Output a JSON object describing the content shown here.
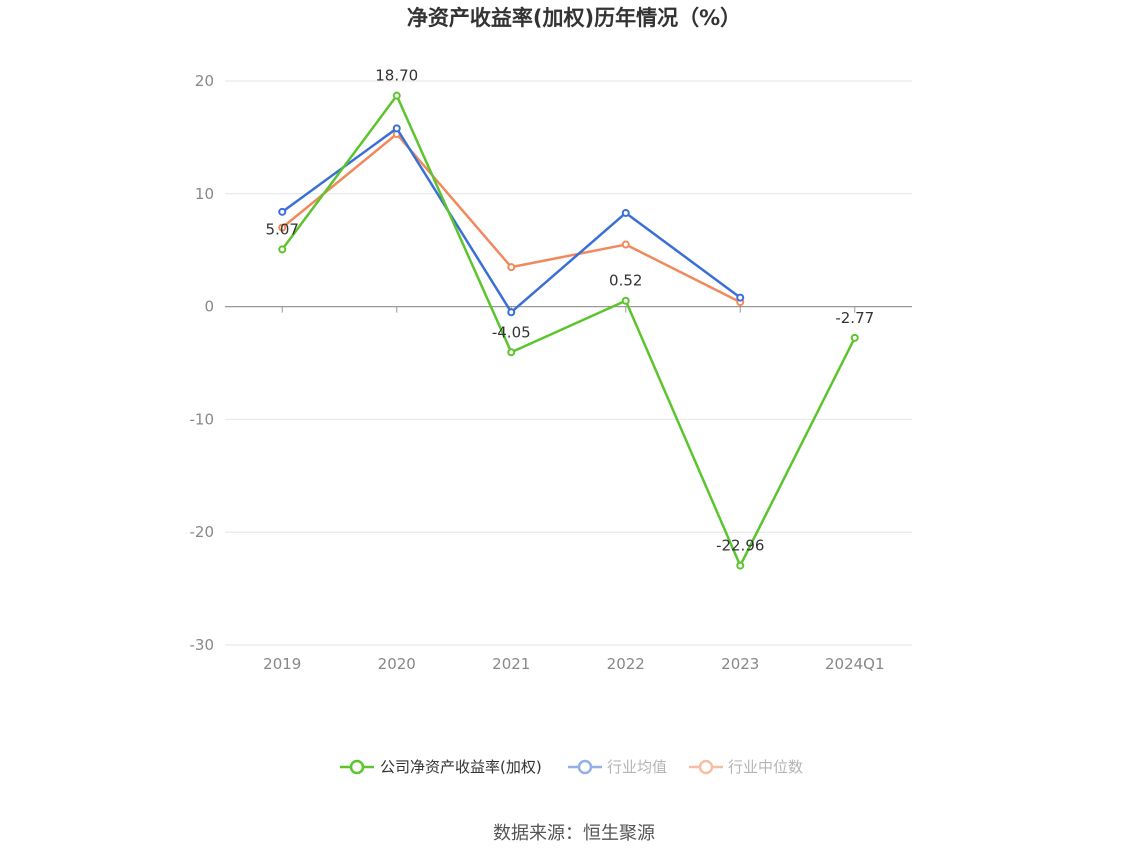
{
  "chart_data": {
    "type": "line",
    "title": "净资产收益率(加权)历年情况（%）",
    "categories": [
      "2019",
      "2020",
      "2021",
      "2022",
      "2023",
      "2024Q1"
    ],
    "ylim": [
      -30,
      20
    ],
    "yticks": [
      20,
      10,
      0,
      -10,
      -20,
      -30
    ],
    "grid": true,
    "legend_position": "bottom",
    "series": [
      {
        "name": "公司净资产收益率(加权)",
        "color": "#5cc52e",
        "values": [
          5.07,
          18.7,
          -4.05,
          0.52,
          -22.96,
          -2.77
        ],
        "labels": [
          "5.07",
          "18.70",
          "-4.05",
          "0.52",
          "-22.96",
          "-2.77"
        ]
      },
      {
        "name": "行业均值",
        "color": "#3b6fd8",
        "values": [
          8.4,
          15.8,
          -0.5,
          8.3,
          0.8,
          null
        ]
      },
      {
        "name": "行业中位数",
        "color": "#f08a5d",
        "values": [
          7.0,
          15.3,
          3.5,
          5.5,
          0.4,
          null
        ]
      }
    ]
  },
  "source": "数据来源：恒生聚源"
}
